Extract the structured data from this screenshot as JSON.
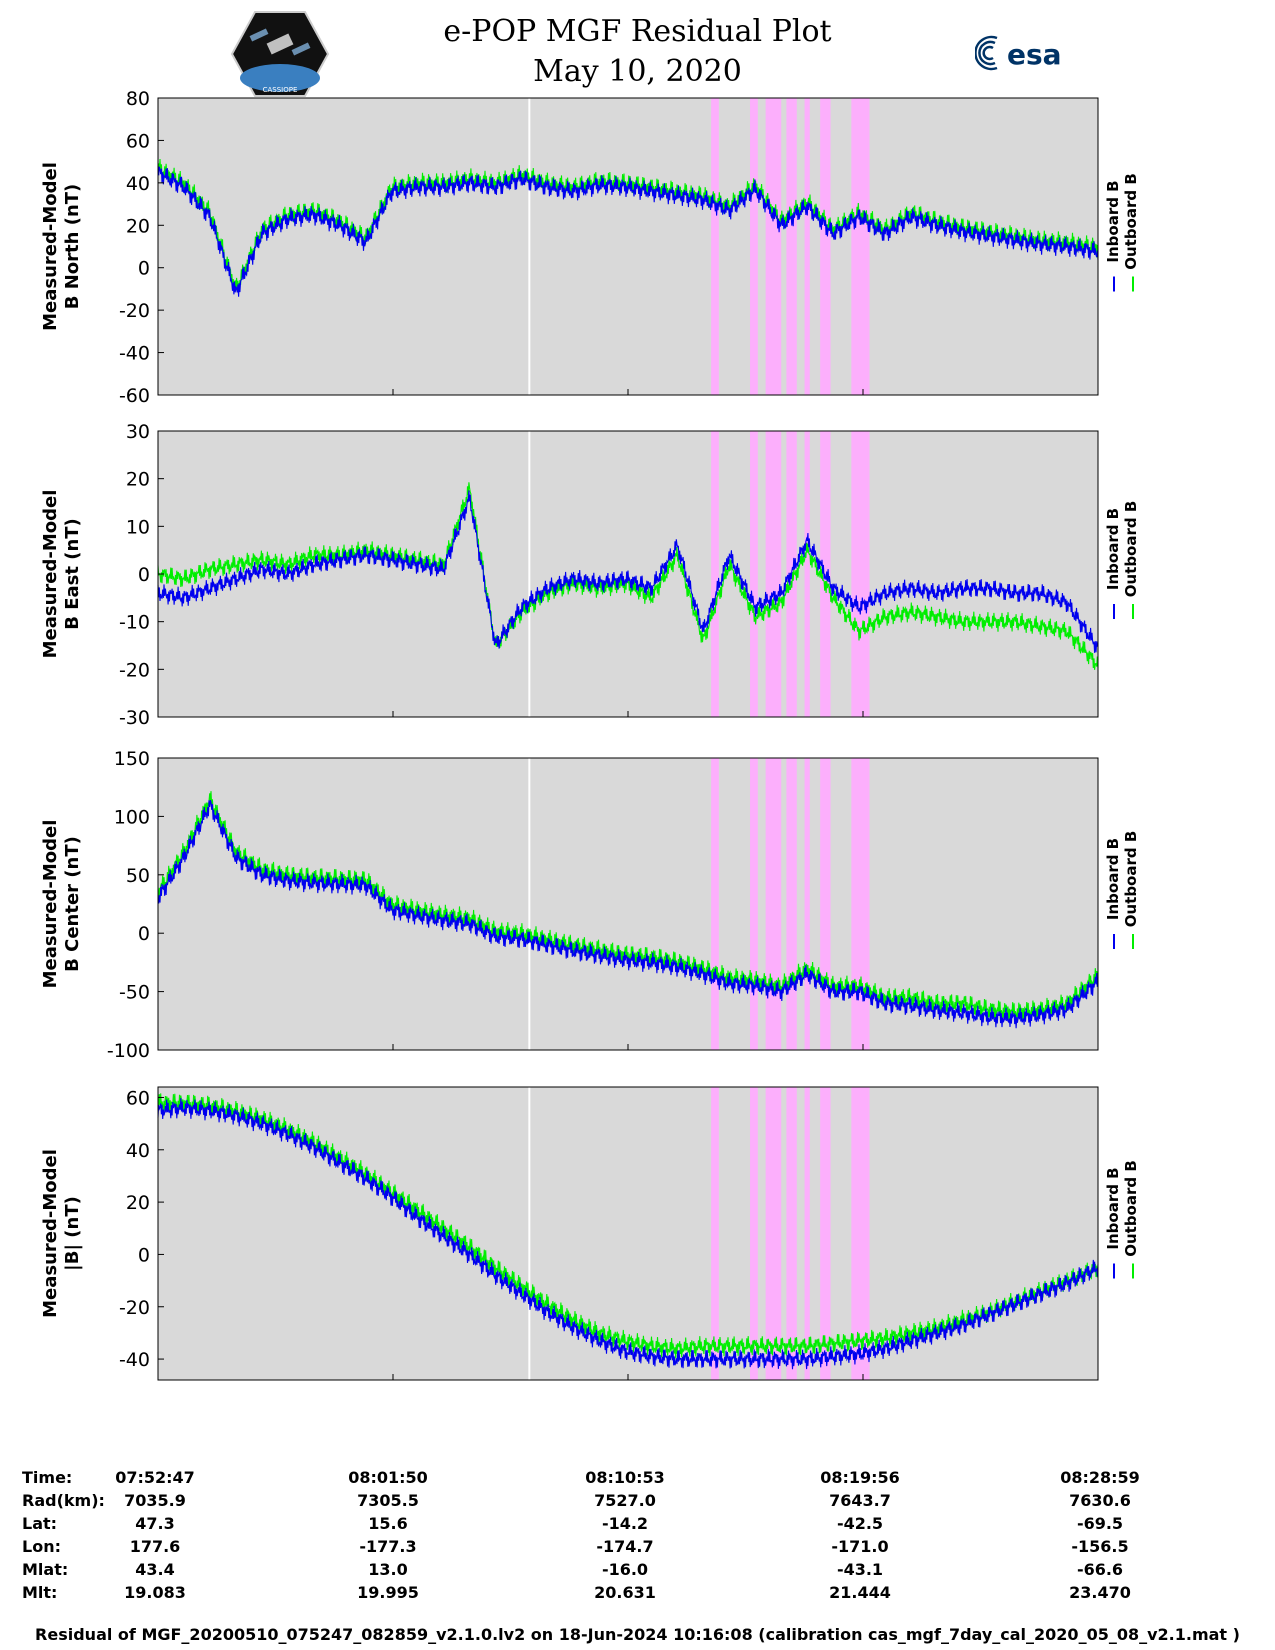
{
  "header": {
    "title": "e-POP MGF Residual Plot",
    "date": "May 10, 2020",
    "left_logo_text": "CASSIOPE",
    "right_logo_text": "esa"
  },
  "chart_data": [
    {
      "type": "line",
      "ylabel_line1": "Measured-Model",
      "ylabel_line2": "B North (nT)",
      "ylim": [
        -60,
        80
      ],
      "yticks": [
        80,
        60,
        40,
        20,
        0,
        -20,
        -40,
        -60
      ],
      "legend": [
        "Inboard B",
        "Outboard B"
      ],
      "x_minutes": [
        0,
        1,
        2,
        3,
        4,
        5,
        6,
        7,
        8,
        9,
        10,
        11,
        12,
        13,
        14,
        15,
        16,
        17,
        18,
        19,
        20,
        21,
        22,
        23,
        24,
        25,
        26,
        27,
        28,
        29,
        30,
        31,
        32,
        33,
        34,
        35,
        36
      ],
      "series": [
        {
          "name": "Outboard B",
          "color": "#00ee00",
          "values": [
            47,
            40,
            26,
            -10,
            18,
            25,
            27,
            22,
            14,
            38,
            40,
            40,
            42,
            40,
            44,
            40,
            38,
            41,
            40,
            38,
            36,
            34,
            29,
            39,
            22,
            31,
            18,
            26,
            18,
            26,
            22,
            19,
            17,
            15,
            13,
            12,
            10
          ]
        },
        {
          "name": "Inboard B",
          "color": "#0000ee",
          "values": [
            45,
            38,
            24,
            -12,
            16,
            23,
            25,
            20,
            12,
            36,
            38,
            38,
            40,
            38,
            42,
            38,
            36,
            39,
            38,
            36,
            34,
            32,
            27,
            37,
            20,
            29,
            16,
            24,
            16,
            24,
            20,
            17,
            15,
            13,
            11,
            10,
            8
          ]
        }
      ]
    },
    {
      "type": "line",
      "ylabel_line1": "Measured-Model",
      "ylabel_line2": "B East (nT)",
      "ylim": [
        -30,
        30
      ],
      "yticks": [
        30,
        20,
        10,
        0,
        -10,
        -20,
        -30
      ],
      "legend": [
        "Inboard B",
        "Outboard B"
      ],
      "x_minutes": [
        0,
        1,
        2,
        3,
        4,
        5,
        6,
        7,
        8,
        9,
        10,
        11,
        12,
        13,
        14,
        15,
        16,
        17,
        18,
        19,
        20,
        21,
        22,
        23,
        24,
        25,
        26,
        27,
        28,
        29,
        30,
        31,
        32,
        33,
        34,
        35,
        36
      ],
      "series": [
        {
          "name": "Outboard B",
          "color": "#00ee00",
          "values": [
            0,
            -1,
            1,
            2,
            3,
            2,
            4,
            4,
            5,
            4,
            3,
            2,
            18,
            -15,
            -8,
            -4,
            -2,
            -3,
            -2,
            -5,
            4,
            -14,
            2,
            -9,
            -6,
            5,
            -5,
            -12,
            -9,
            -8,
            -9,
            -10,
            -10,
            -10,
            -11,
            -12,
            -18
          ]
        },
        {
          "name": "Inboard B",
          "color": "#0000ee",
          "values": [
            -4,
            -5,
            -3,
            -1,
            1,
            0,
            2,
            3,
            4,
            3,
            2,
            1,
            16,
            -15,
            -7,
            -3,
            -1,
            -2,
            -1,
            -3,
            6,
            -12,
            4,
            -7,
            -4,
            7,
            -3,
            -7,
            -4,
            -3,
            -4,
            -3,
            -3,
            -4,
            -4,
            -6,
            -14
          ]
        }
      ]
    },
    {
      "type": "line",
      "ylabel_line1": "Measured-Model",
      "ylabel_line2": "B Center (nT)",
      "ylim": [
        -100,
        150
      ],
      "yticks": [
        150,
        100,
        50,
        0,
        -50,
        -100
      ],
      "legend": [
        "Inboard B",
        "Outboard B"
      ],
      "x_minutes": [
        0,
        1,
        2,
        3,
        4,
        5,
        6,
        7,
        8,
        9,
        10,
        11,
        12,
        13,
        14,
        15,
        16,
        17,
        18,
        19,
        20,
        21,
        22,
        23,
        24,
        25,
        26,
        27,
        28,
        29,
        30,
        31,
        32,
        33,
        34,
        35,
        36
      ],
      "series": [
        {
          "name": "Outboard B",
          "color": "#00ee00",
          "values": [
            35,
            70,
            115,
            70,
            55,
            50,
            48,
            47,
            46,
            25,
            20,
            16,
            13,
            2,
            0,
            -5,
            -10,
            -14,
            -18,
            -20,
            -24,
            -30,
            -38,
            -40,
            -45,
            -30,
            -45,
            -45,
            -55,
            -55,
            -60,
            -60,
            -65,
            -67,
            -65,
            -60,
            -40
          ]
        },
        {
          "name": "Inboard B",
          "color": "#0000ee",
          "values": [
            30,
            65,
            110,
            65,
            50,
            45,
            43,
            42,
            41,
            20,
            15,
            11,
            8,
            -3,
            -5,
            -10,
            -15,
            -19,
            -23,
            -25,
            -29,
            -35,
            -43,
            -45,
            -50,
            -35,
            -50,
            -50,
            -60,
            -62,
            -66,
            -68,
            -72,
            -73,
            -70,
            -65,
            -45
          ]
        }
      ]
    },
    {
      "type": "line",
      "ylabel_line1": "Measured-Model",
      "ylabel_line2": "|B| (nT)",
      "ylim": [
        -48,
        64
      ],
      "yticks": [
        60,
        40,
        20,
        0,
        -20,
        -40
      ],
      "legend": [
        "Inboard B",
        "Outboard B"
      ],
      "x_minutes": [
        0,
        1,
        2,
        3,
        4,
        5,
        6,
        7,
        8,
        9,
        10,
        11,
        12,
        13,
        14,
        15,
        16,
        17,
        18,
        19,
        20,
        21,
        22,
        23,
        24,
        25,
        26,
        27,
        28,
        29,
        30,
        31,
        32,
        33,
        34,
        35,
        36
      ],
      "series": [
        {
          "name": "Outboard B",
          "color": "#00ee00",
          "values": [
            58,
            58,
            57,
            55,
            52,
            48,
            43,
            37,
            31,
            24,
            17,
            10,
            3,
            -5,
            -12,
            -19,
            -25,
            -30,
            -33,
            -35,
            -36,
            -35,
            -35,
            -35,
            -35,
            -35,
            -34,
            -33,
            -32,
            -30,
            -28,
            -25,
            -22,
            -18,
            -14,
            -10,
            -6
          ]
        },
        {
          "name": "Inboard B",
          "color": "#0000ee",
          "values": [
            55,
            56,
            55,
            53,
            50,
            46,
            41,
            35,
            29,
            22,
            14,
            7,
            0,
            -8,
            -15,
            -22,
            -28,
            -33,
            -37,
            -39,
            -40,
            -40,
            -40,
            -40,
            -40,
            -40,
            -39,
            -38,
            -36,
            -33,
            -30,
            -27,
            -23,
            -19,
            -15,
            -11,
            -6
          ]
        }
      ]
    }
  ],
  "time_axis": {
    "start_minutes": 0,
    "end_minutes": 36.2,
    "ticks_minutes": [
      0,
      9.05,
      18.1,
      27.15,
      36.2
    ],
    "white_line_minute": 14.3,
    "pink_bands_minutes": [
      [
        21.3,
        21.6
      ],
      [
        22.8,
        23.1
      ],
      [
        23.4,
        24.0
      ],
      [
        24.2,
        24.6
      ],
      [
        24.9,
        25.1
      ],
      [
        25.5,
        25.9
      ],
      [
        26.7,
        27.4
      ]
    ]
  },
  "info_table": {
    "labels": [
      "Time:",
      "Rad(km):",
      "Lat:",
      "Lon:",
      "Mlat:",
      "Mlt:"
    ],
    "columns": [
      [
        "07:52:47",
        "7035.9",
        "47.3",
        "177.6",
        "43.4",
        "19.083"
      ],
      [
        "08:01:50",
        "7305.5",
        "15.6",
        "-177.3",
        "13.0",
        "19.995"
      ],
      [
        "08:10:53",
        "7527.0",
        "-14.2",
        "-174.7",
        "-16.0",
        "20.631"
      ],
      [
        "08:19:56",
        "7643.7",
        "-42.5",
        "-171.0",
        "-43.1",
        "21.444"
      ],
      [
        "08:28:59",
        "7630.6",
        "-69.5",
        "-156.5",
        "-66.6",
        "23.470"
      ]
    ]
  },
  "footer": "Residual of MGF_20200510_075247_082859_v2.1.0.lv2 on 18-Jun-2024 10:16:08 (calibration cas_mgf_7day_cal_2020_05_08_v2.1.mat )",
  "colors": {
    "plot_bg": "#d9d9d9",
    "inboard": "#0000ee",
    "outboard": "#00ee00",
    "pink": "#ffaaff",
    "white_line": "#ffffff"
  }
}
